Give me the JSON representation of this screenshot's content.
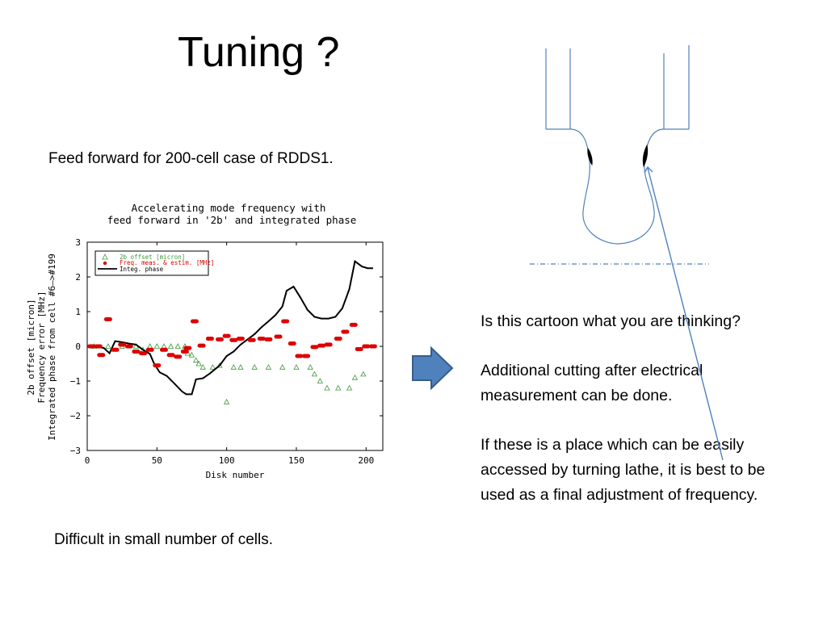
{
  "slide": {
    "title": "Tuning ?",
    "subtitle": "Feed forward for 200-cell case of RDDS1.",
    "bottom_note": "Difficult in small number of cells.",
    "paragraphs": [
      "Is this cartoon what you are thinking?",
      "Additional cutting after electrical measurement can be done.",
      "If these is a place which can be easily accessed by turning lathe, it is best to be used as a final adjustment of frequency."
    ]
  },
  "colors": {
    "cartoon_line": "#4f81bd",
    "arrow_fill": "#4f81bd",
    "arrow_stroke": "#385d8a",
    "freq_series": "#dd0000",
    "offset_series": "#3a9a3a",
    "phase_series": "#000000"
  },
  "icons": {
    "right_arrow": "right-arrow-icon",
    "cavity_cartoon": "cavity-cartoon-icon"
  },
  "chart_data": {
    "type": "scatter",
    "title": "Accelerating mode frequency with",
    "subtitle": "feed forward in '2b' and integrated phase",
    "xlabel": "Disk number",
    "ylabel_lines": [
      "2b offset [micron]",
      "Frequency error [MHz]",
      "Integrated phase from cell #6—>#199"
    ],
    "xlim": [
      0,
      212
    ],
    "ylim": [
      -3,
      3
    ],
    "xticks": [
      0,
      50,
      100,
      150,
      200
    ],
    "yticks": [
      -3,
      -2,
      -1,
      0,
      1,
      2,
      3
    ],
    "ytick_labels": [
      "−3",
      "−2",
      "−1",
      "0",
      "1",
      "2",
      "3"
    ],
    "legend_position": "top-left",
    "grid": false,
    "series": [
      {
        "name": "2b offset [micron]",
        "marker": "triangle",
        "points": [
          [
            5,
            0
          ],
          [
            15,
            0
          ],
          [
            25,
            0
          ],
          [
            35,
            0
          ],
          [
            40,
            -0.1
          ],
          [
            45,
            0
          ],
          [
            50,
            0
          ],
          [
            55,
            0
          ],
          [
            60,
            0
          ],
          [
            65,
            0
          ],
          [
            70,
            0
          ],
          [
            72,
            -0.2
          ],
          [
            75,
            -0.25
          ],
          [
            78,
            -0.4
          ],
          [
            80,
            -0.5
          ],
          [
            83,
            -0.6
          ],
          [
            90,
            -0.6
          ],
          [
            95,
            -0.55
          ],
          [
            100,
            -1.6
          ],
          [
            105,
            -0.6
          ],
          [
            110,
            -0.6
          ],
          [
            120,
            -0.6
          ],
          [
            130,
            -0.6
          ],
          [
            140,
            -0.6
          ],
          [
            150,
            -0.6
          ],
          [
            160,
            -0.6
          ],
          [
            163,
            -0.8
          ],
          [
            167,
            -1.0
          ],
          [
            172,
            -1.2
          ],
          [
            180,
            -1.2
          ],
          [
            188,
            -1.2
          ],
          [
            192,
            -0.9
          ],
          [
            198,
            -0.8
          ]
        ]
      },
      {
        "name": "Freq. meas. & estim. [MHz]",
        "marker": "circle",
        "points": [
          [
            3,
            0
          ],
          [
            8,
            0
          ],
          [
            10,
            -0.25
          ],
          [
            15,
            0.78
          ],
          [
            20,
            -0.1
          ],
          [
            25,
            0.05
          ],
          [
            30,
            0
          ],
          [
            35,
            -0.15
          ],
          [
            40,
            -0.2
          ],
          [
            45,
            -0.1
          ],
          [
            50,
            -0.55
          ],
          [
            55,
            -0.1
          ],
          [
            60,
            -0.25
          ],
          [
            65,
            -0.3
          ],
          [
            70,
            -0.15
          ],
          [
            72,
            -0.05
          ],
          [
            77,
            0.72
          ],
          [
            82,
            0.02
          ],
          [
            88,
            0.22
          ],
          [
            95,
            0.2
          ],
          [
            100,
            0.3
          ],
          [
            105,
            0.18
          ],
          [
            110,
            0.22
          ],
          [
            118,
            0.18
          ],
          [
            125,
            0.22
          ],
          [
            130,
            0.2
          ],
          [
            137,
            0.28
          ],
          [
            142,
            0.72
          ],
          [
            147,
            0.08
          ],
          [
            152,
            -0.28
          ],
          [
            157,
            -0.28
          ],
          [
            163,
            -0.02
          ],
          [
            168,
            0.02
          ],
          [
            173,
            0.05
          ],
          [
            180,
            0.22
          ],
          [
            185,
            0.42
          ],
          [
            191,
            0.62
          ],
          [
            195,
            -0.08
          ],
          [
            200,
            0
          ],
          [
            205,
            0
          ]
        ]
      },
      {
        "name": "Integ. phase",
        "marker": "line",
        "points": [
          [
            6,
            0
          ],
          [
            12,
            -0.05
          ],
          [
            16,
            -0.2
          ],
          [
            20,
            0.15
          ],
          [
            25,
            0.12
          ],
          [
            30,
            0.08
          ],
          [
            35,
            0.05
          ],
          [
            40,
            -0.1
          ],
          [
            45,
            -0.22
          ],
          [
            48,
            -0.5
          ],
          [
            52,
            -0.75
          ],
          [
            57,
            -0.85
          ],
          [
            62,
            -1.05
          ],
          [
            68,
            -1.3
          ],
          [
            71,
            -1.38
          ],
          [
            75,
            -1.38
          ],
          [
            78,
            -0.95
          ],
          [
            83,
            -0.92
          ],
          [
            88,
            -0.78
          ],
          [
            95,
            -0.55
          ],
          [
            100,
            -0.28
          ],
          [
            105,
            -0.15
          ],
          [
            110,
            0.05
          ],
          [
            115,
            0.2
          ],
          [
            120,
            0.35
          ],
          [
            125,
            0.55
          ],
          [
            130,
            0.72
          ],
          [
            135,
            0.9
          ],
          [
            140,
            1.15
          ],
          [
            143,
            1.6
          ],
          [
            148,
            1.72
          ],
          [
            153,
            1.4
          ],
          [
            158,
            1.05
          ],
          [
            163,
            0.85
          ],
          [
            168,
            0.8
          ],
          [
            173,
            0.8
          ],
          [
            178,
            0.85
          ],
          [
            183,
            1.1
          ],
          [
            188,
            1.65
          ],
          [
            192,
            2.45
          ],
          [
            197,
            2.3
          ],
          [
            201,
            2.25
          ],
          [
            205,
            2.25
          ]
        ]
      }
    ]
  }
}
